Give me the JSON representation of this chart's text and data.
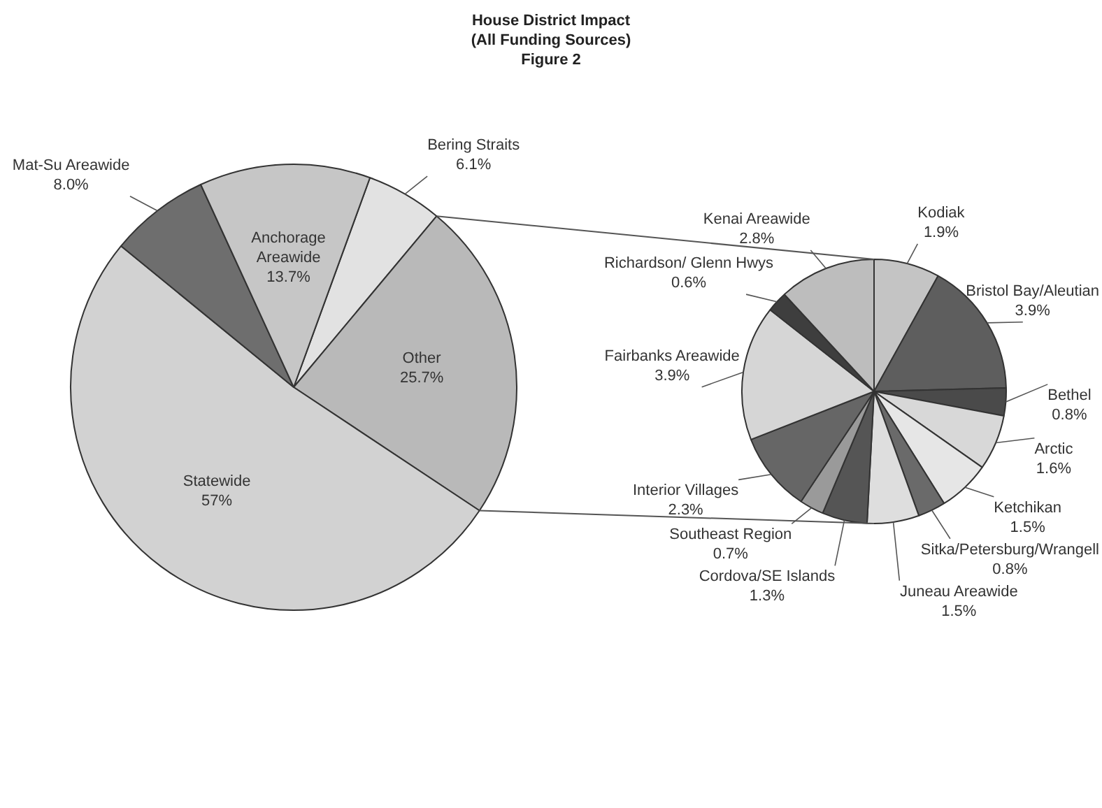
{
  "chart_data": [
    {
      "type": "pie",
      "title": "House District Impact",
      "subtitle": "(All Funding Sources)",
      "annotations": [
        "Figure 2"
      ],
      "categories": [
        "Bering Straits",
        "Other",
        "Statewide",
        "Mat-Su Areawide",
        "Anchorage Areawide"
      ],
      "values": [
        6.1,
        25.7,
        57,
        8.0,
        13.7
      ],
      "value_labels": [
        "6.1%",
        "25.7%",
        "57%",
        "8.0%",
        "13.7%"
      ],
      "colors": [
        "#e2e2e2",
        "#b9b9b9",
        "#d2d2d2",
        "#6e6e6e",
        "#c6c6c6"
      ]
    },
    {
      "type": "pie",
      "categories": [
        "Kodiak",
        "Bristol Bay/Aleutian",
        "Bethel",
        "Arctic",
        "Ketchikan",
        "Sitka/Petersburg/Wrangell",
        "Juneau Areawide",
        "Cordova/SE Islands",
        "Southeast Region",
        "Interior Villages",
        "Fairbanks Areawide",
        "Richardson/ Glenn Hwys",
        "Kenai Areawide"
      ],
      "values": [
        1.9,
        3.9,
        0.8,
        1.6,
        1.5,
        0.8,
        1.5,
        1.3,
        0.7,
        2.3,
        3.9,
        0.6,
        2.8
      ],
      "value_labels": [
        "1.9%",
        "3.9%",
        "0.8%",
        "1.6%",
        "1.5%",
        "0.8%",
        "1.5%",
        "1.3%",
        "0.7%",
        "2.3%",
        "3.9%",
        "0.6%",
        "2.8%"
      ],
      "colors": [
        "#c4c4c4",
        "#5e5e5e",
        "#4a4a4a",
        "#d8d8d8",
        "#e6e6e6",
        "#6a6a6a",
        "#dedede",
        "#555555",
        "#9a9a9a",
        "#666666",
        "#d6d6d6",
        "#3e3e3e",
        "#bdbdbd"
      ]
    }
  ]
}
